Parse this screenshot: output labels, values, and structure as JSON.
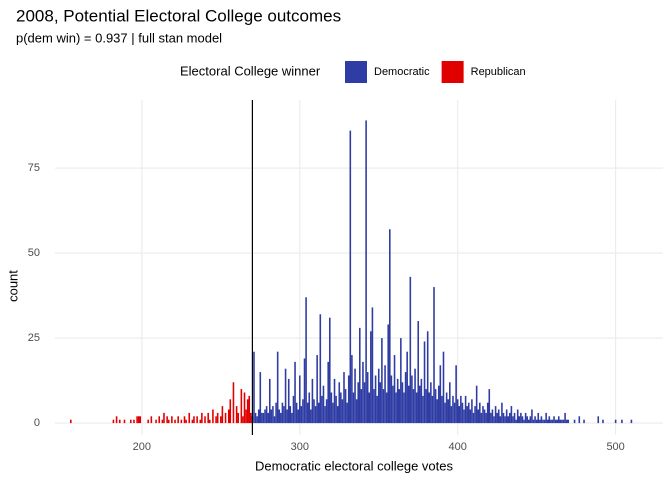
{
  "chart_data": {
    "type": "bar",
    "title": "2008, Potential Electoral College outcomes",
    "subtitle": "p(dem win) = 0.937 | full stan model",
    "x_label": "Democratic electoral college votes",
    "y_label": "count",
    "legend_title": "Electoral College winner",
    "legend_position": "top",
    "grid": true,
    "xlim": [
      145,
      530
    ],
    "ylim": [
      -3.5,
      95
    ],
    "xticks": [
      200,
      300,
      400,
      500
    ],
    "yticks": [
      0,
      25,
      50,
      75
    ],
    "vline": 270,
    "series": [
      {
        "name": "Democratic",
        "color": "#2e3ca3",
        "x": [
          270,
          271,
          272,
          273,
          274,
          275,
          276,
          277,
          278,
          279,
          280,
          281,
          282,
          283,
          284,
          285,
          286,
          287,
          288,
          289,
          290,
          291,
          292,
          293,
          294,
          295,
          296,
          297,
          298,
          299,
          300,
          301,
          302,
          303,
          304,
          305,
          306,
          307,
          308,
          309,
          310,
          311,
          312,
          313,
          314,
          315,
          316,
          317,
          318,
          319,
          320,
          321,
          322,
          323,
          324,
          325,
          326,
          327,
          328,
          329,
          330,
          331,
          332,
          333,
          334,
          335,
          336,
          337,
          338,
          339,
          340,
          341,
          342,
          343,
          344,
          345,
          346,
          347,
          348,
          349,
          350,
          351,
          352,
          353,
          354,
          355,
          356,
          357,
          358,
          359,
          360,
          361,
          362,
          363,
          364,
          365,
          366,
          367,
          368,
          369,
          370,
          371,
          372,
          373,
          374,
          375,
          376,
          377,
          378,
          379,
          380,
          381,
          382,
          383,
          384,
          385,
          386,
          387,
          388,
          389,
          390,
          391,
          392,
          393,
          394,
          395,
          396,
          397,
          398,
          399,
          400,
          401,
          402,
          403,
          404,
          405,
          406,
          407,
          408,
          409,
          410,
          411,
          412,
          413,
          414,
          415,
          416,
          417,
          418,
          419,
          420,
          421,
          422,
          423,
          424,
          425,
          426,
          427,
          428,
          429,
          430,
          431,
          432,
          433,
          434,
          435,
          436,
          437,
          438,
          439,
          440,
          441,
          442,
          443,
          444,
          445,
          446,
          447,
          448,
          449,
          450,
          451,
          452,
          453,
          454,
          455,
          456,
          457,
          458,
          459,
          460,
          461,
          462,
          463,
          464,
          465,
          466,
          467,
          468,
          469,
          470,
          474,
          477,
          480,
          489,
          492,
          500,
          504,
          510
        ],
        "values": [
          2,
          21,
          3,
          2,
          4,
          15,
          3,
          3,
          4,
          5,
          3,
          13,
          4,
          5,
          2,
          6,
          21,
          4,
          3,
          6,
          5,
          16,
          4,
          13,
          5,
          3,
          8,
          18,
          6,
          4,
          14,
          5,
          7,
          19,
          37,
          6,
          9,
          4,
          13,
          7,
          5,
          20,
          6,
          32,
          8,
          11,
          5,
          7,
          18,
          31,
          9,
          6,
          13,
          8,
          5,
          12,
          9,
          7,
          15,
          10,
          6,
          14,
          86,
          20,
          9,
          16,
          7,
          12,
          28,
          10,
          18,
          12,
          89,
          15,
          9,
          27,
          34,
          10,
          14,
          8,
          16,
          12,
          25,
          10,
          17,
          9,
          29,
          57,
          14,
          11,
          20,
          9,
          13,
          10,
          25,
          12,
          9,
          15,
          21,
          11,
          43,
          14,
          10,
          16,
          9,
          30,
          11,
          13,
          8,
          24,
          10,
          27,
          9,
          12,
          8,
          40,
          10,
          7,
          11,
          17,
          8,
          21,
          6,
          9,
          7,
          12,
          5,
          8,
          6,
          17,
          7,
          5,
          8,
          6,
          4,
          8,
          5,
          6,
          4,
          7,
          3,
          5,
          11,
          4,
          6,
          3,
          5,
          4,
          3,
          6,
          10,
          3,
          4,
          2,
          5,
          3,
          4,
          2,
          6,
          3,
          2,
          4,
          2,
          3,
          5,
          2,
          3,
          1,
          4,
          2,
          3,
          2,
          1,
          3,
          2,
          1,
          2,
          4,
          1,
          2,
          1,
          3,
          1,
          2,
          1,
          1,
          3,
          1,
          2,
          1,
          1,
          2,
          1,
          1,
          2,
          1,
          1,
          1,
          3,
          1,
          1,
          1,
          2,
          1,
          2,
          1,
          1,
          1,
          1
        ]
      },
      {
        "name": "Republican",
        "color": "#e00000",
        "x": [
          155,
          182,
          184,
          186,
          189,
          193,
          195,
          197,
          198,
          199,
          204,
          206,
          209,
          211,
          213,
          214,
          216,
          217,
          219,
          221,
          223,
          225,
          227,
          228,
          230,
          232,
          233,
          235,
          237,
          238,
          240,
          242,
          243,
          245,
          247,
          248,
          250,
          251,
          253,
          255,
          256,
          258,
          260,
          261,
          263,
          264,
          265,
          266,
          267,
          268,
          269
        ],
        "values": [
          1,
          1,
          2,
          1,
          1,
          1,
          1,
          2,
          2,
          2,
          1,
          2,
          1,
          2,
          1,
          3,
          2,
          1,
          2,
          1,
          2,
          1,
          2,
          1,
          3,
          1,
          2,
          2,
          1,
          3,
          2,
          3,
          1,
          4,
          2,
          3,
          2,
          5,
          3,
          4,
          7,
          12,
          5,
          3,
          10,
          2,
          9,
          4,
          7,
          8,
          3
        ]
      }
    ]
  }
}
